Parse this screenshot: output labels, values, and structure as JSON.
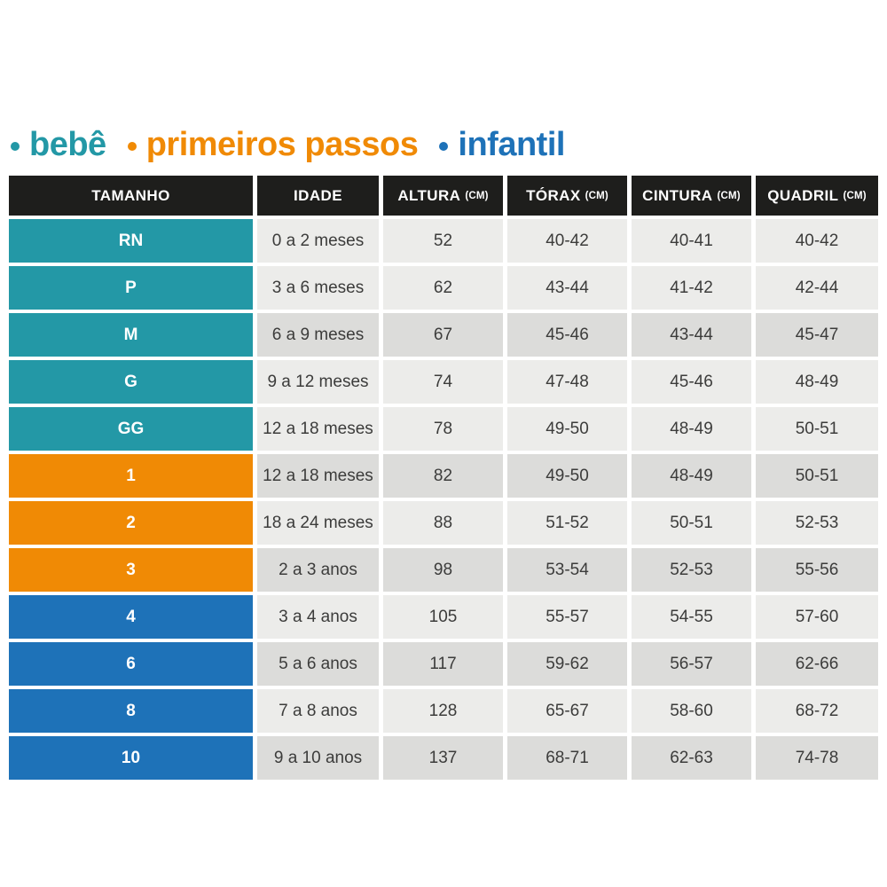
{
  "colors": {
    "bebe": "#2398a6",
    "primeiros_passos": "#f08a05",
    "infantil": "#1e72b8",
    "header_bg": "#1e1e1c",
    "cell_light": "#ececea",
    "cell_dark": "#dcdcda",
    "cell_text": "#3c3c3b"
  },
  "legend": {
    "items": [
      {
        "label": "bebê",
        "group": "bebe",
        "color": "#2398a6"
      },
      {
        "label": "primeiros passos",
        "group": "primeiros_passos",
        "color": "#f08a05"
      },
      {
        "label": "infantil",
        "group": "infantil",
        "color": "#1e72b8"
      }
    ]
  },
  "chart_data": {
    "type": "table",
    "columns": [
      {
        "label": "TAMANHO",
        "unit": ""
      },
      {
        "label": "IDADE",
        "unit": ""
      },
      {
        "label": "ALTURA",
        "unit": "(CM)"
      },
      {
        "label": "TÓRAX",
        "unit": "(CM)"
      },
      {
        "label": "CINTURA",
        "unit": "(CM)"
      },
      {
        "label": "QUADRIL",
        "unit": "(CM)"
      }
    ],
    "rows": [
      {
        "tamanho": "RN",
        "group": "bebe",
        "shade": "light",
        "idade": "0 a 2 meses",
        "altura": "52",
        "torax": "40-42",
        "cintura": "40-41",
        "quadril": "40-42"
      },
      {
        "tamanho": "P",
        "group": "bebe",
        "shade": "light",
        "idade": "3 a 6 meses",
        "altura": "62",
        "torax": "43-44",
        "cintura": "41-42",
        "quadril": "42-44"
      },
      {
        "tamanho": "M",
        "group": "bebe",
        "shade": "dark",
        "idade": "6 a 9 meses",
        "altura": "67",
        "torax": "45-46",
        "cintura": "43-44",
        "quadril": "45-47"
      },
      {
        "tamanho": "G",
        "group": "bebe",
        "shade": "light",
        "idade": "9 a 12 meses",
        "altura": "74",
        "torax": "47-48",
        "cintura": "45-46",
        "quadril": "48-49"
      },
      {
        "tamanho": "GG",
        "group": "bebe",
        "shade": "light",
        "idade": "12 a 18 meses",
        "altura": "78",
        "torax": "49-50",
        "cintura": "48-49",
        "quadril": "50-51"
      },
      {
        "tamanho": "1",
        "group": "primeiros_passos",
        "shade": "dark",
        "idade": "12 a 18 meses",
        "altura": "82",
        "torax": "49-50",
        "cintura": "48-49",
        "quadril": "50-51"
      },
      {
        "tamanho": "2",
        "group": "primeiros_passos",
        "shade": "light",
        "idade": "18 a 24 meses",
        "altura": "88",
        "torax": "51-52",
        "cintura": "50-51",
        "quadril": "52-53"
      },
      {
        "tamanho": "3",
        "group": "primeiros_passos",
        "shade": "dark",
        "idade": "2 a 3 anos",
        "altura": "98",
        "torax": "53-54",
        "cintura": "52-53",
        "quadril": "55-56"
      },
      {
        "tamanho": "4",
        "group": "infantil",
        "shade": "light",
        "idade": "3 a 4 anos",
        "altura": "105",
        "torax": "55-57",
        "cintura": "54-55",
        "quadril": "57-60"
      },
      {
        "tamanho": "6",
        "group": "infantil",
        "shade": "dark",
        "idade": "5 a 6 anos",
        "altura": "117",
        "torax": "59-62",
        "cintura": "56-57",
        "quadril": "62-66"
      },
      {
        "tamanho": "8",
        "group": "infantil",
        "shade": "light",
        "idade": "7 a 8 anos",
        "altura": "128",
        "torax": "65-67",
        "cintura": "58-60",
        "quadril": "68-72"
      },
      {
        "tamanho": "10",
        "group": "infantil",
        "shade": "dark",
        "idade": "9 a 10 anos",
        "altura": "137",
        "torax": "68-71",
        "cintura": "62-63",
        "quadril": "74-78"
      }
    ]
  }
}
